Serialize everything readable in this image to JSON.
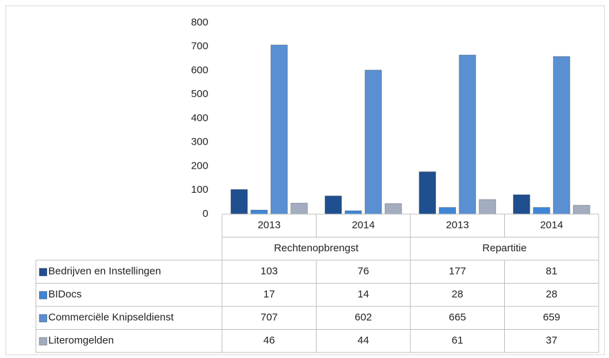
{
  "chart_data": {
    "type": "bar",
    "categories": [
      "2013",
      "2014",
      "2013",
      "2014"
    ],
    "category_groups": [
      "Rechtenopbrengst",
      "Repartitie"
    ],
    "series": [
      {
        "name": "Bedrijven en Instellingen",
        "color": "#1f4f8f",
        "values": [
          103,
          76,
          177,
          81
        ]
      },
      {
        "name": "BIDocs",
        "color": "#3f86d6",
        "values": [
          17,
          14,
          28,
          28
        ]
      },
      {
        "name": "Commerciële Knipseldienst",
        "color": "#5a8fd2",
        "values": [
          707,
          602,
          665,
          659
        ]
      },
      {
        "name": "Literomgelden",
        "color": "#a3adbf",
        "values": [
          46,
          44,
          61,
          37
        ]
      }
    ],
    "ylim": [
      0,
      800
    ],
    "yticks": [
      0,
      100,
      200,
      300,
      400,
      500,
      600,
      700,
      800
    ],
    "data_table": true
  }
}
